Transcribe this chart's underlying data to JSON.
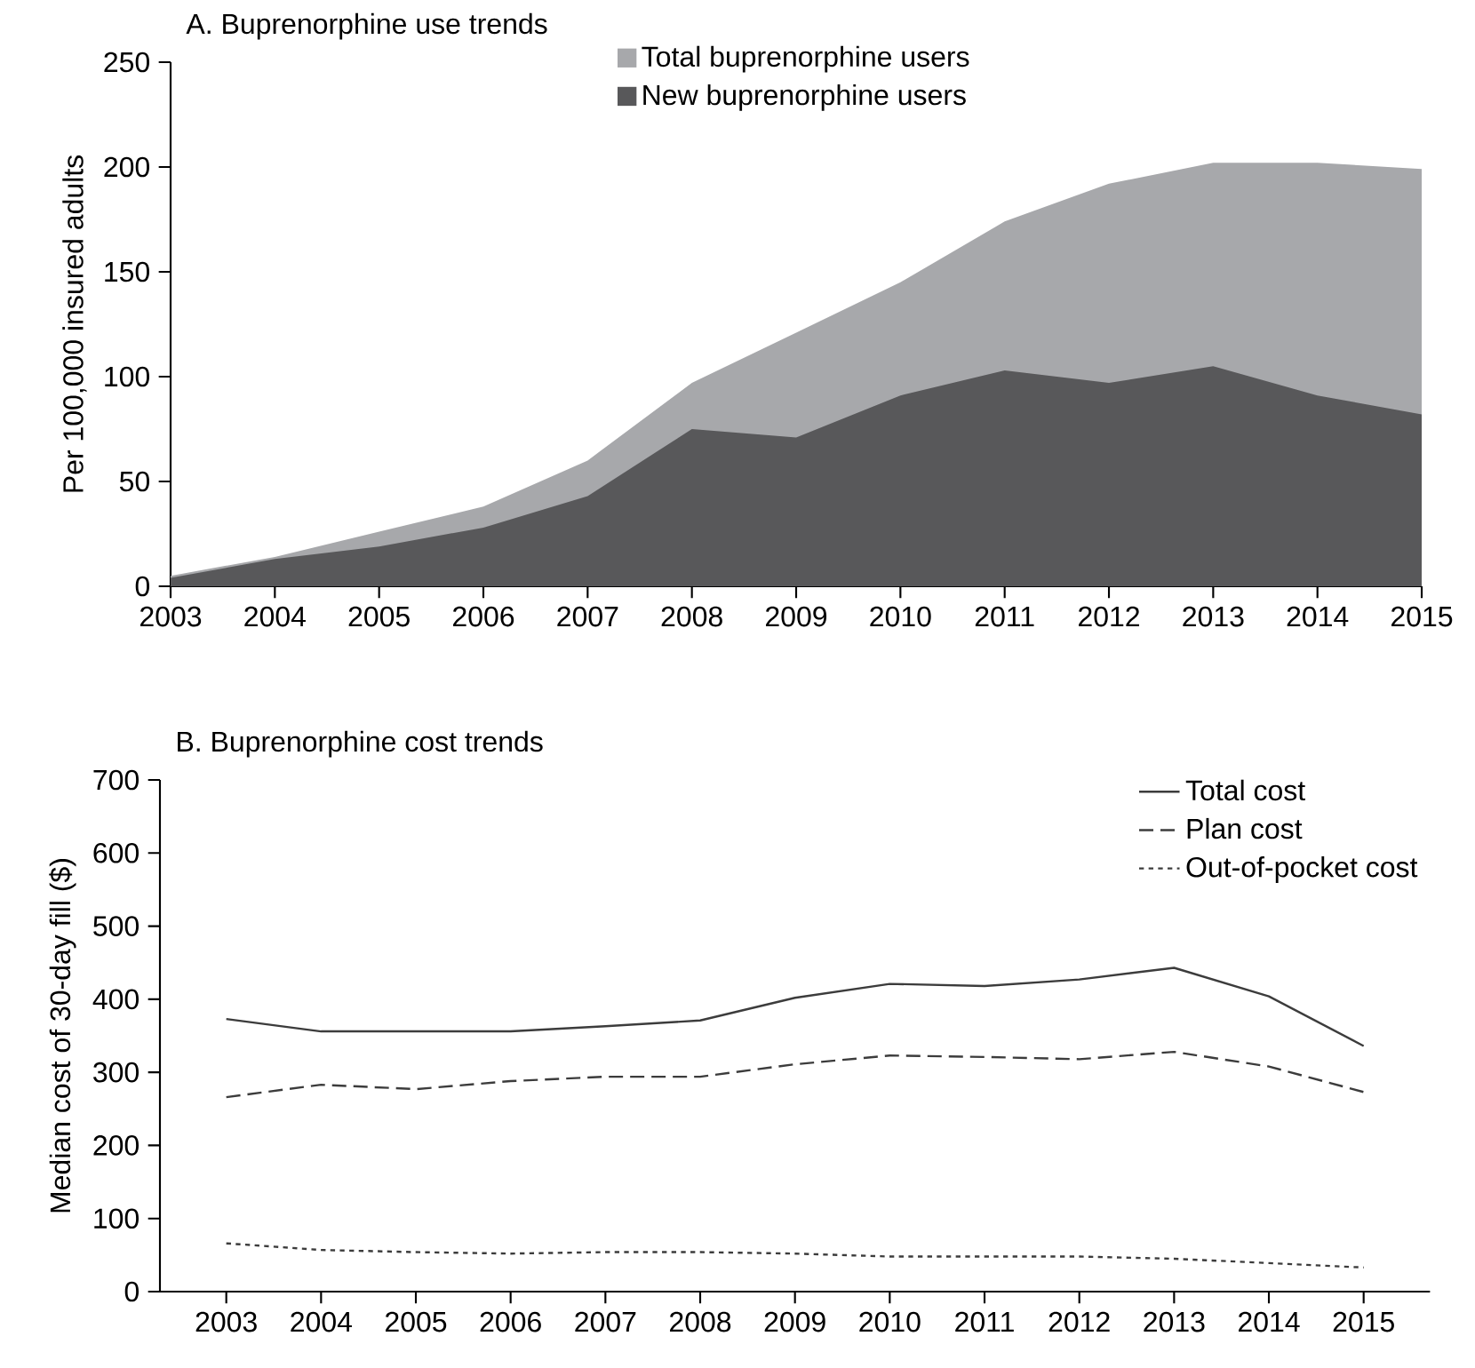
{
  "chart_data": [
    {
      "type": "area",
      "title": "A. Buprenorphine use trends",
      "ylabel": "Per 100,000 insured adults",
      "legend": "top",
      "x": [
        2003,
        2004,
        2005,
        2006,
        2007,
        2008,
        2009,
        2010,
        2011,
        2012,
        2013,
        2014,
        2015
      ],
      "xlim": [
        2003,
        2015
      ],
      "xticks": [
        2003,
        2004,
        2005,
        2006,
        2007,
        2008,
        2009,
        2010,
        2011,
        2012,
        2013,
        2014,
        2015
      ],
      "ylim": [
        0,
        250
      ],
      "yticks": [
        0,
        50,
        100,
        150,
        200,
        250
      ],
      "series": [
        {
          "name": "Total buprenorphine users",
          "color": "#a7a8ab",
          "values": [
            5,
            14,
            26,
            38,
            60,
            97,
            121,
            145,
            174,
            192,
            202,
            202,
            199
          ]
        },
        {
          "name": "New buprenorphine users",
          "color": "#58585a",
          "values": [
            4,
            13,
            19,
            28,
            43,
            75,
            71,
            91,
            103,
            97,
            105,
            91,
            82
          ]
        }
      ]
    },
    {
      "type": "line",
      "title": "B. Buprenorphine cost trends",
      "ylabel": "Median cost of 30-day fill ($)",
      "legend": "top right",
      "x": [
        2003,
        2004,
        2005,
        2006,
        2007,
        2008,
        2009,
        2010,
        2011,
        2012,
        2013,
        2014,
        2015
      ],
      "xlim": [
        2002.3,
        2015.7
      ],
      "xticks": [
        2003,
        2004,
        2005,
        2006,
        2007,
        2008,
        2009,
        2010,
        2011,
        2012,
        2013,
        2014,
        2015
      ],
      "ylim": [
        0,
        700
      ],
      "yticks": [
        0,
        100,
        200,
        300,
        400,
        500,
        600,
        700
      ],
      "series": [
        {
          "name": "Total cost",
          "color": "#3c3c3c",
          "line_style": "solid",
          "values": [
            373,
            356,
            356,
            356,
            363,
            371,
            402,
            421,
            418,
            427,
            443,
            404,
            336
          ]
        },
        {
          "name": "Plan cost",
          "color": "#3c3c3c",
          "line_style": "dashed",
          "values": [
            266,
            283,
            277,
            288,
            294,
            294,
            311,
            323,
            321,
            318,
            328,
            308,
            273
          ]
        },
        {
          "name": "Out-of-pocket cost",
          "color": "#3c3c3c",
          "line_style": "dotted",
          "values": [
            66,
            57,
            54,
            52,
            54,
            54,
            52,
            48,
            48,
            48,
            45,
            39,
            33
          ]
        }
      ]
    }
  ]
}
